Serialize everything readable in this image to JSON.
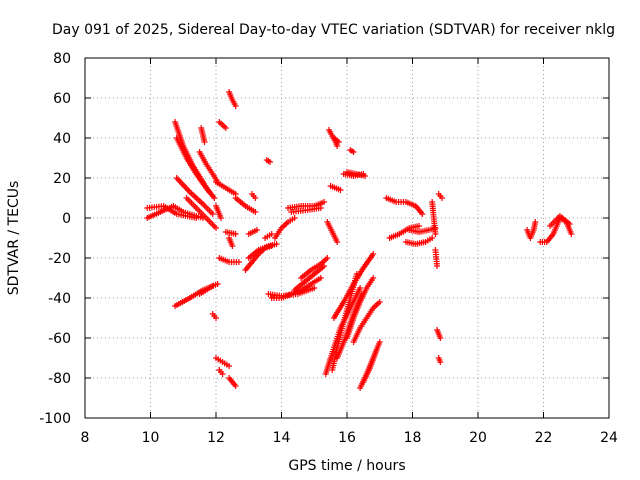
{
  "chart_data": {
    "type": "scatter",
    "title": "Day 091 of 2025, Sidereal Day-to-day VTEC variation (SDTVAR) for receiver nklg",
    "xlabel": "GPS time / hours",
    "ylabel": "SDTVAR / TECUs",
    "xlim": [
      8,
      24
    ],
    "ylim": [
      -100,
      80
    ],
    "xticks": [
      8,
      10,
      12,
      14,
      16,
      18,
      20,
      22,
      24
    ],
    "yticks": [
      -100,
      -80,
      -60,
      -40,
      -20,
      0,
      20,
      40,
      60,
      80
    ],
    "grid": true,
    "marker": "+",
    "color": "#ff0000",
    "segments": [
      {
        "x": [
          9.9,
          10.3,
          10.7,
          11.0,
          11.6
        ],
        "y": [
          0,
          3,
          6,
          3,
          0
        ]
      },
      {
        "x": [
          9.9,
          10.4,
          10.8,
          11.4
        ],
        "y": [
          5,
          6,
          2,
          0
        ]
      },
      {
        "x": [
          10.75,
          11.0,
          11.3,
          11.6,
          11.8
        ],
        "y": [
          48,
          36,
          26,
          18,
          13
        ]
      },
      {
        "x": [
          10.8,
          11.1,
          11.4,
          11.7,
          11.95
        ],
        "y": [
          40,
          30,
          22,
          15,
          10
        ]
      },
      {
        "x": [
          10.8,
          11.2,
          11.6,
          11.9
        ],
        "y": [
          20,
          13,
          7,
          2
        ]
      },
      {
        "x": [
          11.1,
          11.4,
          11.7,
          12.0
        ],
        "y": [
          10,
          5,
          0,
          -5
        ]
      },
      {
        "x": [
          11.5,
          11.7,
          11.9,
          12.05
        ],
        "y": [
          33,
          27,
          22,
          18
        ]
      },
      {
        "x": [
          11.55,
          11.65
        ],
        "y": [
          45,
          38
        ]
      },
      {
        "x": [
          12.1,
          12.3
        ],
        "y": [
          48,
          45
        ]
      },
      {
        "x": [
          12.4,
          12.5,
          12.6
        ],
        "y": [
          63,
          59,
          56
        ]
      },
      {
        "x": [
          12.0,
          12.3,
          12.6
        ],
        "y": [
          18,
          15,
          12
        ]
      },
      {
        "x": [
          12.6,
          12.9,
          13.2
        ],
        "y": [
          10,
          6,
          3
        ]
      },
      {
        "x": [
          12.0,
          12.15
        ],
        "y": [
          6,
          0
        ]
      },
      {
        "x": [
          10.75,
          11.2,
          11.6,
          12.05
        ],
        "y": [
          -44,
          -40,
          -36,
          -33
        ]
      },
      {
        "x": [
          11.5,
          11.9
        ],
        "y": [
          -38,
          -34
        ]
      },
      {
        "x": [
          11.9,
          12.0
        ],
        "y": [
          -48,
          -50
        ]
      },
      {
        "x": [
          12.0,
          12.2,
          12.4
        ],
        "y": [
          -70,
          -72,
          -74
        ]
      },
      {
        "x": [
          12.1,
          12.2
        ],
        "y": [
          -76,
          -78
        ]
      },
      {
        "x": [
          12.4,
          12.6
        ],
        "y": [
          -80,
          -84
        ]
      },
      {
        "x": [
          12.3,
          12.6
        ],
        "y": [
          -7,
          -8
        ]
      },
      {
        "x": [
          12.1,
          12.4,
          12.7
        ],
        "y": [
          -20,
          -22,
          -22
        ]
      },
      {
        "x": [
          12.4,
          12.5
        ],
        "y": [
          -10,
          -14
        ]
      },
      {
        "x": [
          12.9,
          13.1,
          13.3,
          13.5,
          13.7
        ],
        "y": [
          -26,
          -22,
          -18,
          -15,
          -14
        ]
      },
      {
        "x": [
          13.0,
          13.3,
          13.6,
          13.85
        ],
        "y": [
          -20,
          -16,
          -14,
          -13
        ]
      },
      {
        "x": [
          13.0,
          13.25
        ],
        "y": [
          -8,
          -6
        ]
      },
      {
        "x": [
          13.5,
          13.7
        ],
        "y": [
          -10,
          -8
        ]
      },
      {
        "x": [
          13.1,
          13.2
        ],
        "y": [
          12,
          10
        ]
      },
      {
        "x": [
          13.55,
          13.65
        ],
        "y": [
          29,
          28
        ]
      },
      {
        "x": [
          13.8,
          14.0,
          14.2,
          14.4
        ],
        "y": [
          -10,
          -5,
          -2,
          0
        ]
      },
      {
        "x": [
          14.2,
          14.6,
          15.0,
          15.3
        ],
        "y": [
          5,
          6,
          6,
          8
        ]
      },
      {
        "x": [
          14.3,
          14.8,
          15.2
        ],
        "y": [
          3,
          4,
          5
        ]
      },
      {
        "x": [
          14.4,
          14.7,
          15.0,
          15.3
        ],
        "y": [
          -36,
          -32,
          -28,
          -24
        ]
      },
      {
        "x": [
          14.6,
          14.9,
          15.2,
          15.4
        ],
        "y": [
          -30,
          -26,
          -23,
          -20
        ]
      },
      {
        "x": [
          13.7,
          14.0,
          14.3,
          14.6,
          14.9,
          15.2
        ],
        "y": [
          -40,
          -40,
          -38,
          -36,
          -33,
          -30
        ]
      },
      {
        "x": [
          13.6,
          14.0,
          14.5,
          15.0
        ],
        "y": [
          -38,
          -39,
          -38,
          -35
        ]
      },
      {
        "x": [
          15.4,
          15.55,
          15.7
        ],
        "y": [
          -2,
          -7,
          -12
        ]
      },
      {
        "x": [
          15.45,
          15.55,
          15.65,
          15.7
        ],
        "y": [
          44,
          41,
          38,
          36
        ]
      },
      {
        "x": [
          15.6,
          15.75
        ],
        "y": [
          40,
          38
        ]
      },
      {
        "x": [
          15.5,
          15.8
        ],
        "y": [
          16,
          14
        ]
      },
      {
        "x": [
          15.9,
          16.2,
          16.5
        ],
        "y": [
          22,
          21,
          22
        ]
      },
      {
        "x": [
          16.0,
          16.3,
          16.55
        ],
        "y": [
          23,
          22,
          21
        ]
      },
      {
        "x": [
          16.1,
          16.2
        ],
        "y": [
          34,
          33
        ]
      },
      {
        "x": [
          15.35,
          15.5,
          15.8,
          16.1,
          16.4
        ],
        "y": [
          -78,
          -70,
          -55,
          -45,
          -35
        ]
      },
      {
        "x": [
          15.55,
          15.7,
          15.9,
          16.1,
          16.3
        ],
        "y": [
          -76,
          -65,
          -52,
          -40,
          -28
        ]
      },
      {
        "x": [
          15.6,
          15.9,
          16.2,
          16.5,
          16.8
        ],
        "y": [
          -50,
          -42,
          -33,
          -25,
          -18
        ]
      },
      {
        "x": [
          15.7,
          15.95,
          16.2,
          16.45
        ],
        "y": [
          -70,
          -60,
          -48,
          -38
        ]
      },
      {
        "x": [
          16.0,
          16.2,
          16.4,
          16.6,
          16.8
        ],
        "y": [
          -60,
          -50,
          -42,
          -35,
          -30
        ]
      },
      {
        "x": [
          16.2,
          16.4,
          16.6,
          16.8,
          17.0
        ],
        "y": [
          -62,
          -55,
          -50,
          -45,
          -42
        ]
      },
      {
        "x": [
          16.4,
          16.6,
          16.8,
          17.0
        ],
        "y": [
          -85,
          -78,
          -70,
          -62
        ]
      },
      {
        "x": [
          16.5,
          16.7,
          16.9
        ],
        "y": [
          -82,
          -75,
          -66
        ]
      },
      {
        "x": [
          17.2,
          17.5,
          17.8,
          18.1,
          18.3
        ],
        "y": [
          10,
          8,
          8,
          6,
          2
        ]
      },
      {
        "x": [
          17.3,
          17.6,
          17.9,
          18.2
        ],
        "y": [
          -10,
          -8,
          -5,
          -4
        ]
      },
      {
        "x": [
          17.8,
          18.1,
          18.4,
          18.6
        ],
        "y": [
          -12,
          -13,
          -12,
          -10
        ]
      },
      {
        "x": [
          17.9,
          18.2,
          18.5,
          18.7
        ],
        "y": [
          -6,
          -7,
          -6,
          -5
        ]
      },
      {
        "x": [
          18.6,
          18.7
        ],
        "y": [
          8,
          -8
        ]
      },
      {
        "x": [
          18.7,
          18.75
        ],
        "y": [
          -16,
          -24
        ]
      },
      {
        "x": [
          18.8,
          18.9
        ],
        "y": [
          12,
          10
        ]
      },
      {
        "x": [
          18.75,
          18.85
        ],
        "y": [
          -56,
          -60
        ]
      },
      {
        "x": [
          18.8,
          18.85
        ],
        "y": [
          -70,
          -72
        ]
      },
      {
        "x": [
          21.5,
          21.6,
          21.7,
          21.75
        ],
        "y": [
          -6,
          -10,
          -6,
          -2
        ]
      },
      {
        "x": [
          21.9,
          22.1,
          22.3,
          22.5,
          22.7,
          22.85
        ],
        "y": [
          -12,
          -12,
          -8,
          0,
          -2,
          -8
        ]
      },
      {
        "x": [
          22.2,
          22.5,
          22.8
        ],
        "y": [
          -4,
          1,
          -3
        ]
      }
    ]
  }
}
